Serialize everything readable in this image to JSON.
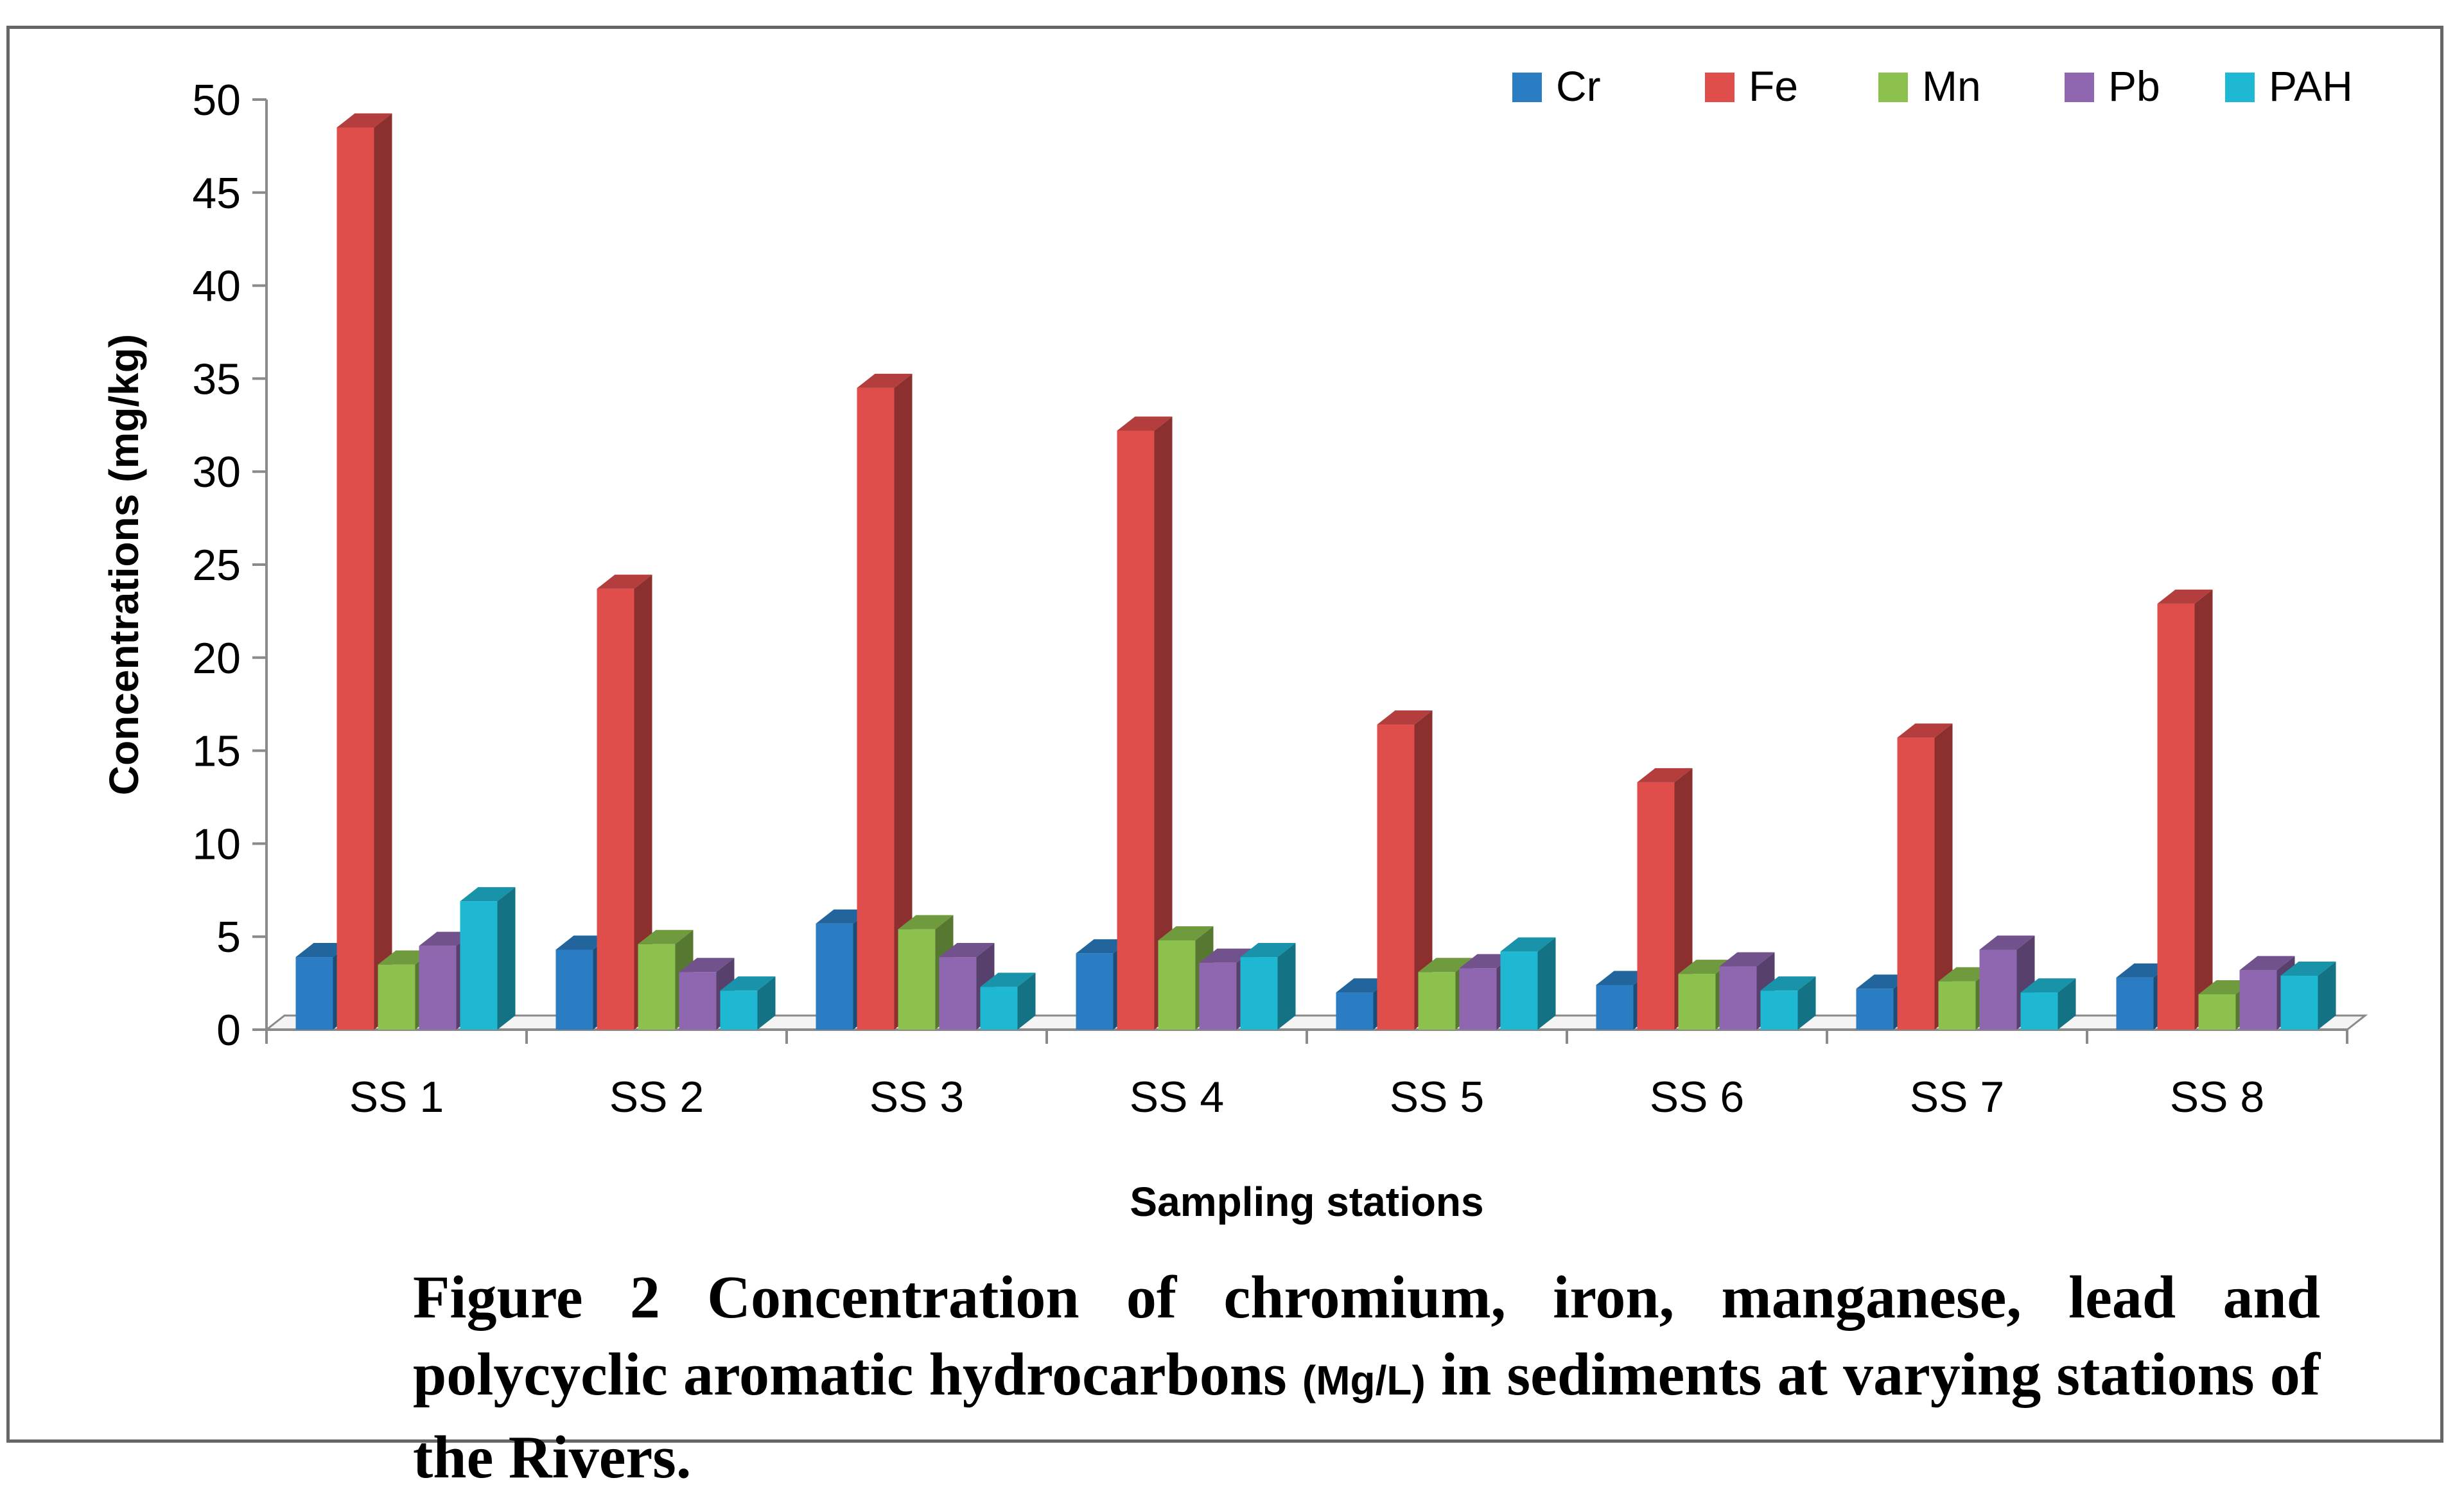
{
  "chart_data": {
    "type": "bar",
    "categories": [
      "SS 1",
      "SS 2",
      "SS 3",
      "SS 4",
      "SS 5",
      "SS 6",
      "SS 7",
      "SS 8"
    ],
    "series": [
      {
        "name": "Cr",
        "color": "#2A7DC3",
        "values": [
          3.9,
          4.3,
          5.7,
          4.1,
          2.0,
          2.4,
          2.2,
          2.8
        ]
      },
      {
        "name": "Fe",
        "color": "#E04E4C",
        "values": [
          48.5,
          23.7,
          34.5,
          32.2,
          16.4,
          13.3,
          15.7,
          22.9
        ]
      },
      {
        "name": "Mn",
        "color": "#8CC14E",
        "values": [
          3.5,
          4.6,
          5.4,
          4.8,
          3.1,
          3.0,
          2.6,
          1.9
        ]
      },
      {
        "name": "Pb",
        "color": "#8E67B0",
        "values": [
          4.5,
          3.1,
          3.9,
          3.6,
          3.3,
          3.4,
          4.3,
          3.2
        ]
      },
      {
        "name": "PAH",
        "color": "#1EB8D3",
        "values": [
          6.9,
          2.1,
          2.3,
          3.9,
          4.2,
          2.1,
          2.0,
          2.9
        ]
      }
    ],
    "y_ticks": [
      "0",
      "5",
      "10",
      "15",
      "20",
      "25",
      "30",
      "35",
      "40",
      "45",
      "50"
    ],
    "ylim": [
      0,
      50
    ],
    "xlabel": "Sampling stations",
    "ylabel": "Concentrations (mg/kg)",
    "legend_position": "top-right"
  },
  "caption": {
    "text_before": "Figure 2 Concentration of chromium, iron, manganese, lead and polycyclic aromatic hydrocarbons ",
    "unit": "(Mg/L)",
    "text_after": "  in sediments at varying stations of the Rivers."
  }
}
